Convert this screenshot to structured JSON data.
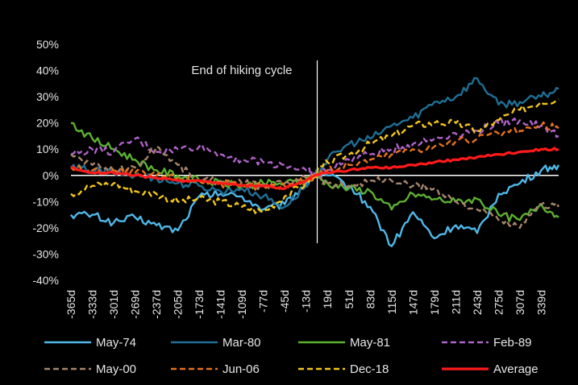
{
  "chart_data": {
    "type": "line",
    "title": "",
    "xlabel": "",
    "ylabel": "",
    "x_ticks": [
      "-365d",
      "-333d",
      "-301d",
      "-269d",
      "-237d",
      "-205d",
      "-173d",
      "-141d",
      "-109d",
      "-77d",
      "-45d",
      "-13d",
      "19d",
      "51d",
      "83d",
      "115d",
      "147d",
      "179d",
      "211d",
      "243d",
      "275d",
      "307d",
      "339d"
    ],
    "y_ticks": [
      "50%",
      "40%",
      "30%",
      "20%",
      "10%",
      "0%",
      "-10%",
      "-20%",
      "-30%",
      "-40%"
    ],
    "ylim": [
      -40,
      50
    ],
    "xlim": [
      -365,
      365
    ],
    "x_unit": "days",
    "y_unit": "%",
    "annotation": {
      "text": "End of hiking cycle",
      "x": 0
    },
    "grid": false,
    "legend_position": "bottom",
    "series": [
      {
        "name": "May-74",
        "color": "#4fb8e8",
        "dash": "solid",
        "x": [
          -365,
          -333,
          -301,
          -269,
          -237,
          -205,
          -173,
          -141,
          -109,
          -77,
          -45,
          -13,
          0,
          19,
          51,
          83,
          115,
          147,
          179,
          211,
          243,
          275,
          307,
          339,
          365
        ],
        "y": [
          -15,
          -15,
          -18,
          -16,
          -19,
          -21,
          -8,
          -7,
          -8,
          -13,
          -11,
          -3,
          0,
          0,
          -4,
          -12,
          -27,
          -14,
          -24,
          -19,
          -22,
          -7,
          -3,
          2,
          4
        ]
      },
      {
        "name": "Mar-80",
        "color": "#1f6f95",
        "dash": "solid",
        "x": [
          -365,
          -333,
          -301,
          -269,
          -237,
          -205,
          -173,
          -141,
          -109,
          -77,
          -45,
          -13,
          0,
          19,
          51,
          83,
          115,
          147,
          179,
          211,
          243,
          275,
          307,
          339,
          365
        ],
        "y": [
          3,
          2,
          1,
          0,
          -1,
          -3,
          -4,
          -6,
          -5,
          -8,
          -12,
          -4,
          0,
          6,
          12,
          14,
          19,
          22,
          28,
          30,
          37,
          27,
          28,
          30,
          33
        ]
      },
      {
        "name": "May-81",
        "color": "#5cb031",
        "dash": "solid",
        "x": [
          -365,
          -333,
          -301,
          -269,
          -237,
          -205,
          -173,
          -141,
          -109,
          -77,
          -45,
          -13,
          0,
          19,
          51,
          83,
          115,
          147,
          179,
          211,
          243,
          275,
          307,
          339,
          365
        ],
        "y": [
          20,
          14,
          10,
          6,
          2,
          0,
          -2,
          -3,
          -4,
          -3,
          -3,
          -2,
          0,
          -3,
          -5,
          -6,
          -13,
          -7,
          -9,
          -10,
          -9,
          -15,
          -17,
          -11,
          -16
        ]
      },
      {
        "name": "Feb-89",
        "color": "#b063c8",
        "dash": "dashed",
        "x": [
          -365,
          -333,
          -301,
          -269,
          -237,
          -205,
          -173,
          -141,
          -109,
          -77,
          -45,
          -13,
          0,
          19,
          51,
          83,
          115,
          147,
          179,
          211,
          243,
          275,
          307,
          339,
          365
        ],
        "y": [
          8,
          10,
          9,
          14,
          9,
          10,
          11,
          8,
          6,
          5,
          4,
          2,
          0,
          2,
          6,
          8,
          10,
          12,
          14,
          16,
          17,
          20,
          21,
          19,
          15
        ]
      },
      {
        "name": "May-00",
        "color": "#a6846b",
        "dash": "dashed",
        "x": [
          -365,
          -333,
          -301,
          -269,
          -237,
          -205,
          -173,
          -141,
          -109,
          -77,
          -45,
          -13,
          0,
          19,
          51,
          83,
          115,
          147,
          179,
          211,
          243,
          275,
          307,
          339,
          365
        ],
        "y": [
          8,
          4,
          2,
          3,
          11,
          4,
          -2,
          -2,
          -3,
          -4,
          -3,
          -1,
          0,
          -3,
          -4,
          -2,
          -2,
          -4,
          -5,
          -10,
          -13,
          -17,
          -20,
          -11,
          -12
        ]
      },
      {
        "name": "Jun-06",
        "color": "#e5711d",
        "dash": "dashed",
        "x": [
          -365,
          -333,
          -301,
          -269,
          -237,
          -205,
          -173,
          -141,
          -109,
          -77,
          -45,
          -13,
          0,
          19,
          51,
          83,
          115,
          147,
          179,
          211,
          243,
          275,
          307,
          339,
          365
        ],
        "y": [
          3,
          2,
          2,
          1,
          0,
          -1,
          -2,
          -3,
          -4,
          -4,
          -4,
          -2,
          0,
          2,
          4,
          6,
          8,
          10,
          11,
          13,
          14,
          16,
          17,
          19,
          18
        ]
      },
      {
        "name": "Dec-18",
        "color": "#f2c618",
        "dash": "dashed",
        "x": [
          -365,
          -333,
          -301,
          -269,
          -237,
          -205,
          -173,
          -141,
          -109,
          -77,
          -45,
          -13,
          0,
          19,
          51,
          83,
          115,
          147,
          179,
          211,
          243,
          275,
          307,
          339,
          365
        ],
        "y": [
          -7,
          -4,
          -3,
          -6,
          -7,
          -10,
          -9,
          -10,
          -12,
          -14,
          -8,
          -3,
          0,
          5,
          8,
          12,
          15,
          19,
          20,
          20,
          17,
          21,
          25,
          28,
          29
        ]
      },
      {
        "name": "Average",
        "color": "#ff1a1a",
        "dash": "solid",
        "x": [
          -365,
          -333,
          -301,
          -269,
          -237,
          -205,
          -173,
          -141,
          -109,
          -77,
          -45,
          -13,
          0,
          19,
          51,
          83,
          115,
          147,
          179,
          211,
          243,
          275,
          307,
          339,
          365
        ],
        "y": [
          3,
          1,
          1,
          0,
          -1,
          -2,
          -2,
          -3,
          -4,
          -4,
          -5,
          -2,
          0,
          1,
          2,
          3,
          3,
          4,
          5,
          6,
          7,
          8,
          9,
          10,
          10
        ]
      }
    ]
  }
}
